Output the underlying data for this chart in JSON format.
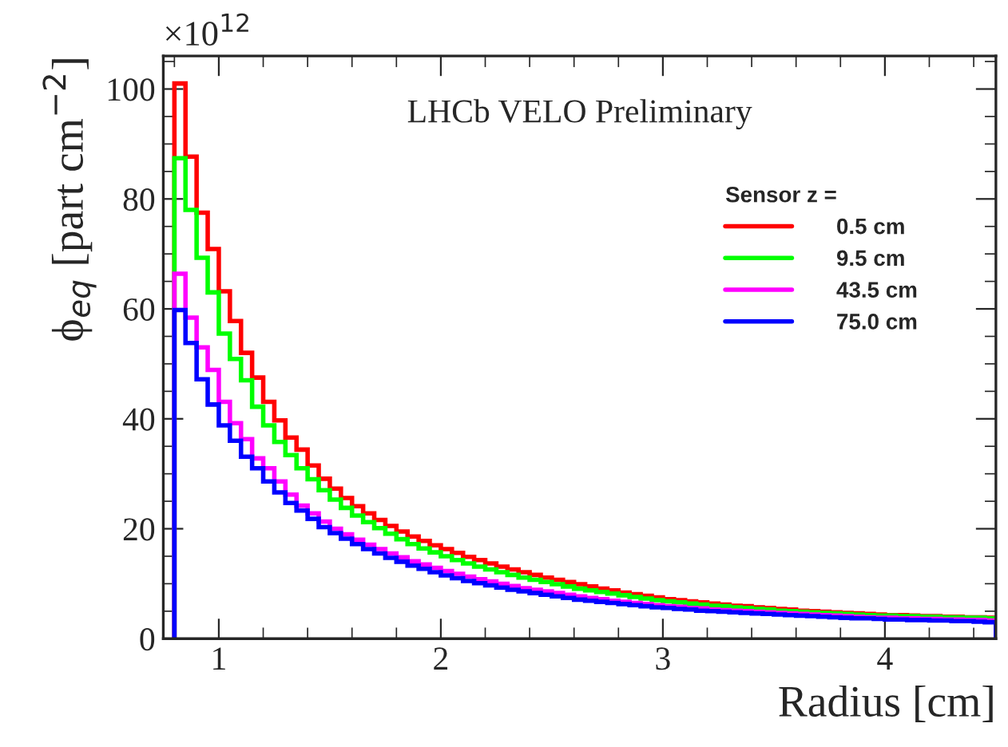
{
  "chart_data": {
    "type": "histogram",
    "title": "LHCb VELO Preliminary",
    "xlabel": "Radius [cm]",
    "ylabel": "ϕ$_{eq}$ [part cm$^{−2}$]",
    "legend_title": "Sensor z =",
    "annotations": [
      "×10$^{12}$"
    ],
    "bins": [
      0.8,
      0.85,
      0.9,
      0.95,
      1.0,
      1.05,
      1.1,
      1.15,
      1.2,
      1.25,
      1.3,
      1.35,
      1.4,
      1.45,
      1.5,
      1.55,
      1.6,
      1.65,
      1.7,
      1.75,
      1.8,
      1.85,
      1.9,
      1.95,
      2.0,
      2.05,
      2.1,
      2.15,
      2.2,
      2.25,
      2.3,
      2.35,
      2.4,
      2.45,
      2.5,
      2.55,
      2.6,
      2.65,
      2.7,
      2.75,
      2.8,
      2.85,
      2.9,
      2.95,
      3.0,
      3.05,
      3.1,
      3.15,
      3.2,
      3.25,
      3.3,
      3.35,
      3.4,
      3.45,
      3.5,
      3.55,
      3.6,
      3.65,
      3.7,
      3.75,
      3.8,
      3.85,
      3.9,
      3.95,
      4.0,
      4.05,
      4.1,
      4.15,
      4.2,
      4.25,
      4.3,
      4.35,
      4.4,
      4.45,
      4.5
    ],
    "series": [
      {
        "name": "0.5 cm",
        "color": "#ff0000",
        "values": [
          101,
          87.7,
          77.5,
          70.9,
          63.2,
          57.8,
          52,
          47.5,
          43.1,
          39.7,
          36.6,
          34.4,
          31.5,
          29.1,
          27.3,
          25.6,
          24.1,
          22.8,
          21.6,
          20.5,
          19.5,
          18.6,
          17.8,
          17.0,
          16.3,
          15.6,
          14.9,
          14.3,
          13.7,
          13.1,
          12.6,
          12.1,
          11.6,
          11.1,
          10.7,
          10.3,
          9.9,
          9.5,
          9.1,
          8.8,
          8.4,
          8.1,
          7.8,
          7.5,
          7.2,
          7.0,
          6.8,
          6.6,
          6.4,
          6.2,
          6.0,
          5.9,
          5.7,
          5.6,
          5.4,
          5.3,
          5.1,
          5.0,
          4.9,
          4.8,
          4.7,
          4.6,
          4.5,
          4.4,
          4.3,
          4.3,
          4.2,
          4.1,
          4.1,
          4.0,
          4.0,
          3.9,
          3.9,
          3.8
        ]
      },
      {
        "name": "9.5 cm",
        "color": "#00ff00",
        "values": [
          87.4,
          78,
          69.3,
          63,
          55.5,
          50.9,
          47,
          42.2,
          38.8,
          35.8,
          33.4,
          31,
          29,
          27,
          25.3,
          23.8,
          22.4,
          21.2,
          20.1,
          19.1,
          18.1,
          17.2,
          16.4,
          15.7,
          15.0,
          14.3,
          13.7,
          13.1,
          12.6,
          12.1,
          11.6,
          11.1,
          10.7,
          10.3,
          9.9,
          9.5,
          9.1,
          8.8,
          8.5,
          8.2,
          7.9,
          7.6,
          7.3,
          7.0,
          6.8,
          6.6,
          6.4,
          6.2,
          6.0,
          5.9,
          5.7,
          5.6,
          5.4,
          5.3,
          5.1,
          5.0,
          4.9,
          4.8,
          4.7,
          4.6,
          4.5,
          4.4,
          4.3,
          4.2,
          4.2,
          4.1,
          4.1,
          4.0,
          4.0,
          3.9,
          3.9,
          3.8,
          3.8,
          3.7
        ]
      },
      {
        "name": "43.5 cm",
        "color": "#ff00ff",
        "values": [
          66.4,
          58.4,
          53,
          48.9,
          43.1,
          39.2,
          36.3,
          32.8,
          31,
          28.6,
          26.2,
          24.2,
          22.8,
          21.3,
          20.0,
          19.0,
          18.0,
          17.1,
          16.3,
          15.5,
          14.8,
          14.1,
          13.5,
          12.9,
          12.3,
          11.8,
          11.3,
          10.8,
          10.4,
          10.0,
          9.6,
          9.2,
          8.9,
          8.6,
          8.3,
          8.0,
          7.7,
          7.4,
          7.2,
          6.9,
          6.7,
          6.5,
          6.3,
          6.1,
          5.9,
          5.8,
          5.6,
          5.5,
          5.3,
          5.2,
          5.1,
          5.0,
          4.9,
          4.8,
          4.7,
          4.6,
          4.5,
          4.4,
          4.3,
          4.2,
          4.1,
          4.0,
          3.9,
          3.8,
          3.8,
          3.7,
          3.7,
          3.6,
          3.6,
          3.5,
          3.5,
          3.4,
          3.4,
          3.3
        ]
      },
      {
        "name": "75.0 cm",
        "color": "#0000ff",
        "values": [
          59.8,
          53.8,
          47.2,
          42.6,
          38.8,
          36,
          33.1,
          31,
          28.6,
          26.6,
          24.7,
          23.3,
          21.8,
          20.3,
          19.2,
          18.2,
          17.2,
          16.3,
          15.5,
          14.7,
          14.0,
          13.3,
          12.7,
          12.1,
          11.5,
          11.0,
          10.5,
          10.1,
          9.7,
          9.3,
          8.9,
          8.6,
          8.3,
          8.0,
          7.7,
          7.4,
          7.1,
          6.9,
          6.7,
          6.5,
          6.3,
          6.1,
          5.9,
          5.7,
          5.6,
          5.4,
          5.3,
          5.1,
          5.0,
          4.9,
          4.8,
          4.7,
          4.6,
          4.5,
          4.4,
          4.3,
          4.2,
          4.1,
          4.0,
          3.9,
          3.8,
          3.7,
          3.7,
          3.6,
          3.5,
          3.5,
          3.4,
          3.4,
          3.3,
          3.3,
          3.2,
          3.2,
          3.1,
          3.0
        ]
      }
    ],
    "xlim": [
      0.75,
      4.5
    ],
    "xticks": [
      1,
      2,
      3,
      4
    ],
    "ylim": [
      0,
      106
    ],
    "yticks": [
      0,
      20,
      40,
      60,
      80,
      100
    ],
    "grid": false,
    "legend": "right"
  }
}
